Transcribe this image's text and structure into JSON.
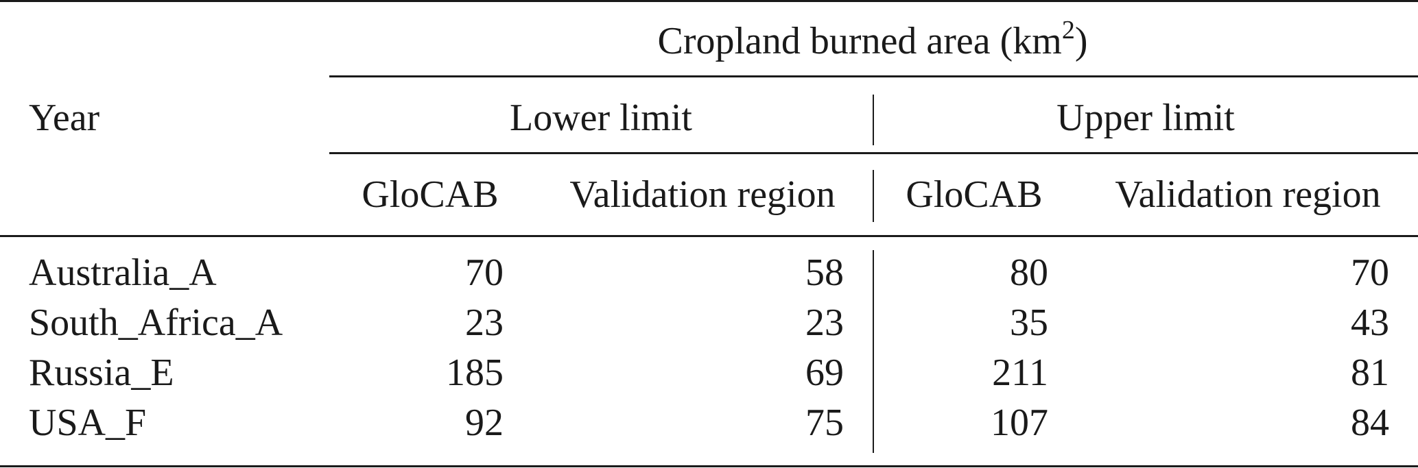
{
  "table": {
    "header": {
      "group_title_prefix": "Cropland burned area (km",
      "group_title_sup": "2",
      "group_title_suffix": ")",
      "row_label": "Year",
      "lower_limit": "Lower limit",
      "upper_limit": "Upper limit",
      "columns": [
        "GloCAB",
        "Validation region",
        "GloCAB",
        "Validation region"
      ]
    },
    "rows": [
      {
        "name": "Australia_A",
        "values": [
          "70",
          "58",
          "80",
          "70"
        ]
      },
      {
        "name": "South_Africa_A",
        "values": [
          "23",
          "23",
          "35",
          "43"
        ]
      },
      {
        "name": "Russia_E",
        "values": [
          "185",
          "69",
          "211",
          "81"
        ]
      },
      {
        "name": "USA_F",
        "values": [
          "92",
          "75",
          "107",
          "84"
        ]
      }
    ]
  }
}
